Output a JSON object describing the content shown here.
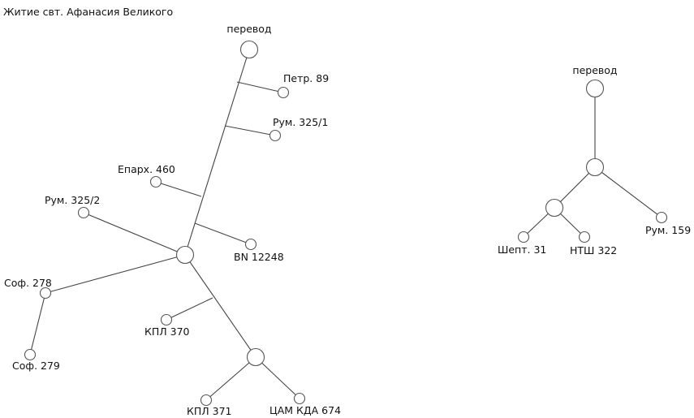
{
  "title": "Житие свт. Афанасия Великого",
  "trees": [
    {
      "id": "left",
      "nodes": [
        {
          "id": "L_root",
          "label": "перевод",
          "kind": "large"
        },
        {
          "id": "L_petr",
          "label": "Петр. 89",
          "kind": "leaf"
        },
        {
          "id": "L_rum1",
          "label": "Рум. 325/1",
          "kind": "leaf"
        },
        {
          "id": "L_epar",
          "label": "Епарх. 460",
          "kind": "leaf"
        },
        {
          "id": "L_bn",
          "label": "BN 12248",
          "kind": "leaf"
        },
        {
          "id": "L_rum2",
          "label": "Рум. 325/2",
          "kind": "leaf"
        },
        {
          "id": "L_hub",
          "label": "",
          "kind": "large"
        },
        {
          "id": "L_sof278",
          "label": "Соф. 278",
          "kind": "leaf"
        },
        {
          "id": "L_sof279",
          "label": "Соф. 279",
          "kind": "leaf"
        },
        {
          "id": "L_kpl370",
          "label": "КПЛ 370",
          "kind": "leaf"
        },
        {
          "id": "L_sub",
          "label": "",
          "kind": "large"
        },
        {
          "id": "L_kpl371",
          "label": "КПЛ 371",
          "kind": "leaf"
        },
        {
          "id": "L_cam",
          "label": "ЦАМ КДА 674",
          "kind": "leaf"
        }
      ]
    },
    {
      "id": "right",
      "nodes": [
        {
          "id": "R_root",
          "label": "перевод",
          "kind": "large"
        },
        {
          "id": "R_mid",
          "label": "",
          "kind": "large"
        },
        {
          "id": "R_sub",
          "label": "",
          "kind": "large"
        },
        {
          "id": "R_rum159",
          "label": "Рум. 159",
          "kind": "leaf"
        },
        {
          "id": "R_shept",
          "label": "Шепт. 31",
          "kind": "leaf"
        },
        {
          "id": "R_ntsh",
          "label": "НТШ 322",
          "kind": "leaf"
        }
      ]
    }
  ]
}
